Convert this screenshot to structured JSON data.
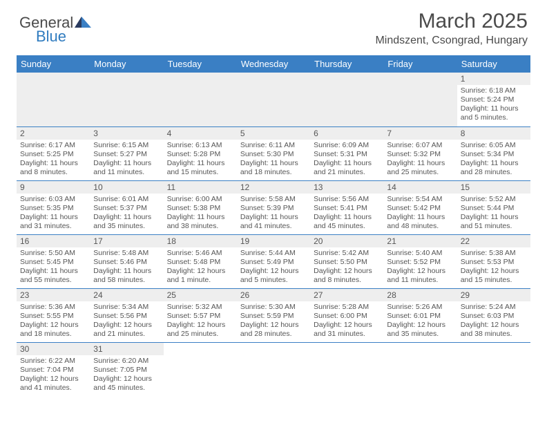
{
  "logo": {
    "part1": "General",
    "part2": "Blue"
  },
  "title": "March 2025",
  "location": "Mindszent, Csongrad, Hungary",
  "colors": {
    "header_bg": "#3a7fc4",
    "header_text": "#ffffff",
    "daynum_bg": "#eeeeee",
    "text": "#555555",
    "border": "#3a7fc4"
  },
  "weekdays": [
    "Sunday",
    "Monday",
    "Tuesday",
    "Wednesday",
    "Thursday",
    "Friday",
    "Saturday"
  ],
  "weeks": [
    [
      null,
      null,
      null,
      null,
      null,
      null,
      {
        "n": "1",
        "sunrise": "6:18 AM",
        "sunset": "5:24 PM",
        "daylight": "11 hours and 5 minutes."
      }
    ],
    [
      {
        "n": "2",
        "sunrise": "6:17 AM",
        "sunset": "5:25 PM",
        "daylight": "11 hours and 8 minutes."
      },
      {
        "n": "3",
        "sunrise": "6:15 AM",
        "sunset": "5:27 PM",
        "daylight": "11 hours and 11 minutes."
      },
      {
        "n": "4",
        "sunrise": "6:13 AM",
        "sunset": "5:28 PM",
        "daylight": "11 hours and 15 minutes."
      },
      {
        "n": "5",
        "sunrise": "6:11 AM",
        "sunset": "5:30 PM",
        "daylight": "11 hours and 18 minutes."
      },
      {
        "n": "6",
        "sunrise": "6:09 AM",
        "sunset": "5:31 PM",
        "daylight": "11 hours and 21 minutes."
      },
      {
        "n": "7",
        "sunrise": "6:07 AM",
        "sunset": "5:32 PM",
        "daylight": "11 hours and 25 minutes."
      },
      {
        "n": "8",
        "sunrise": "6:05 AM",
        "sunset": "5:34 PM",
        "daylight": "11 hours and 28 minutes."
      }
    ],
    [
      {
        "n": "9",
        "sunrise": "6:03 AM",
        "sunset": "5:35 PM",
        "daylight": "11 hours and 31 minutes."
      },
      {
        "n": "10",
        "sunrise": "6:01 AM",
        "sunset": "5:37 PM",
        "daylight": "11 hours and 35 minutes."
      },
      {
        "n": "11",
        "sunrise": "6:00 AM",
        "sunset": "5:38 PM",
        "daylight": "11 hours and 38 minutes."
      },
      {
        "n": "12",
        "sunrise": "5:58 AM",
        "sunset": "5:39 PM",
        "daylight": "11 hours and 41 minutes."
      },
      {
        "n": "13",
        "sunrise": "5:56 AM",
        "sunset": "5:41 PM",
        "daylight": "11 hours and 45 minutes."
      },
      {
        "n": "14",
        "sunrise": "5:54 AM",
        "sunset": "5:42 PM",
        "daylight": "11 hours and 48 minutes."
      },
      {
        "n": "15",
        "sunrise": "5:52 AM",
        "sunset": "5:44 PM",
        "daylight": "11 hours and 51 minutes."
      }
    ],
    [
      {
        "n": "16",
        "sunrise": "5:50 AM",
        "sunset": "5:45 PM",
        "daylight": "11 hours and 55 minutes."
      },
      {
        "n": "17",
        "sunrise": "5:48 AM",
        "sunset": "5:46 PM",
        "daylight": "11 hours and 58 minutes."
      },
      {
        "n": "18",
        "sunrise": "5:46 AM",
        "sunset": "5:48 PM",
        "daylight": "12 hours and 1 minute."
      },
      {
        "n": "19",
        "sunrise": "5:44 AM",
        "sunset": "5:49 PM",
        "daylight": "12 hours and 5 minutes."
      },
      {
        "n": "20",
        "sunrise": "5:42 AM",
        "sunset": "5:50 PM",
        "daylight": "12 hours and 8 minutes."
      },
      {
        "n": "21",
        "sunrise": "5:40 AM",
        "sunset": "5:52 PM",
        "daylight": "12 hours and 11 minutes."
      },
      {
        "n": "22",
        "sunrise": "5:38 AM",
        "sunset": "5:53 PM",
        "daylight": "12 hours and 15 minutes."
      }
    ],
    [
      {
        "n": "23",
        "sunrise": "5:36 AM",
        "sunset": "5:55 PM",
        "daylight": "12 hours and 18 minutes."
      },
      {
        "n": "24",
        "sunrise": "5:34 AM",
        "sunset": "5:56 PM",
        "daylight": "12 hours and 21 minutes."
      },
      {
        "n": "25",
        "sunrise": "5:32 AM",
        "sunset": "5:57 PM",
        "daylight": "12 hours and 25 minutes."
      },
      {
        "n": "26",
        "sunrise": "5:30 AM",
        "sunset": "5:59 PM",
        "daylight": "12 hours and 28 minutes."
      },
      {
        "n": "27",
        "sunrise": "5:28 AM",
        "sunset": "6:00 PM",
        "daylight": "12 hours and 31 minutes."
      },
      {
        "n": "28",
        "sunrise": "5:26 AM",
        "sunset": "6:01 PM",
        "daylight": "12 hours and 35 minutes."
      },
      {
        "n": "29",
        "sunrise": "5:24 AM",
        "sunset": "6:03 PM",
        "daylight": "12 hours and 38 minutes."
      }
    ],
    [
      {
        "n": "30",
        "sunrise": "6:22 AM",
        "sunset": "7:04 PM",
        "daylight": "12 hours and 41 minutes."
      },
      {
        "n": "31",
        "sunrise": "6:20 AM",
        "sunset": "7:05 PM",
        "daylight": "12 hours and 45 minutes."
      },
      null,
      null,
      null,
      null,
      null
    ]
  ]
}
